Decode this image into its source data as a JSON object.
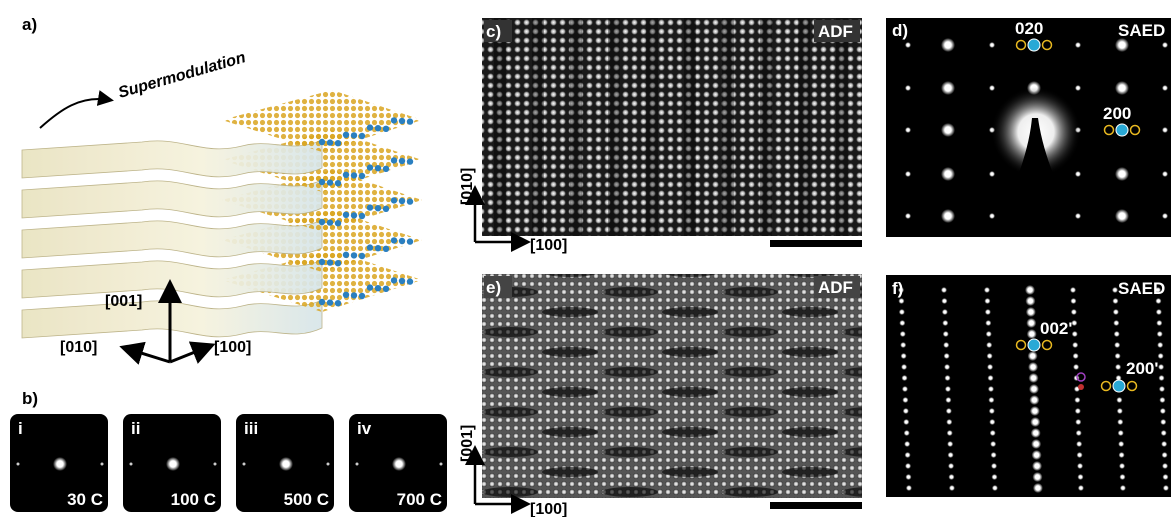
{
  "panels": {
    "a": {
      "label": "a)",
      "title": "Supermodulation",
      "axes": {
        "up": "[001]",
        "left": "[010]",
        "right": "[100]"
      }
    },
    "b": {
      "label": "b)",
      "frames": [
        {
          "index": "i",
          "temperature": "30 C"
        },
        {
          "index": "ii",
          "temperature": "100 C"
        },
        {
          "index": "iii",
          "temperature": "500 C"
        },
        {
          "index": "iv",
          "temperature": "700 C"
        }
      ]
    },
    "c": {
      "label": "c)",
      "mode": "ADF",
      "axis_vertical": "[010]",
      "axis_horizontal": "[100]"
    },
    "d": {
      "label": "d)",
      "mode": "SAED",
      "spots": [
        "020",
        "200"
      ]
    },
    "e": {
      "label": "e)",
      "mode": "ADF",
      "axis_vertical": "[001]",
      "axis_horizontal": "[100]"
    },
    "f": {
      "label": "f)",
      "mode": "SAED",
      "spots": [
        "002'",
        "200'"
      ]
    }
  }
}
